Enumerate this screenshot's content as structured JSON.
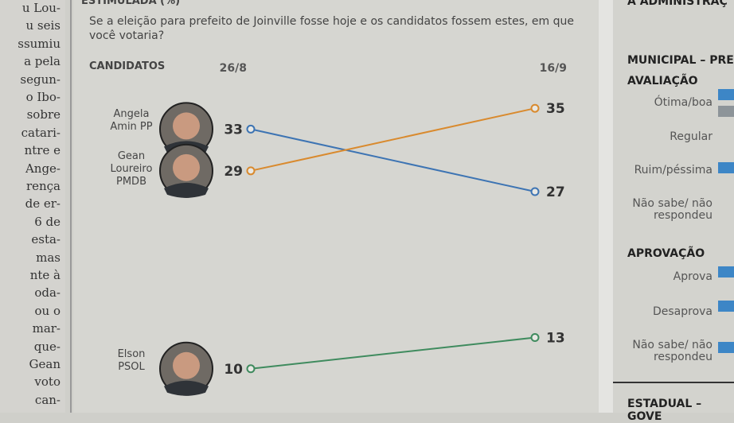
{
  "chart_data": {
    "type": "slope",
    "title": "ESTIMULADA (%)",
    "subtitle": "Se a eleição para prefeito de Joinville fosse hoje e os candidatos fossem estes, em que você votaria?",
    "label_header": "CANDIDATOS",
    "categories": [
      "26/8",
      "16/9"
    ],
    "series": [
      {
        "name": "Angela Amin PP",
        "color": "#3d74b3",
        "values": [
          33,
          27
        ]
      },
      {
        "name": "Gean Loureiro PMDB",
        "color": "#d98a2e",
        "values": [
          29,
          35
        ]
      },
      {
        "name": "Elson PSOL",
        "color": "#3f8b5e",
        "values": [
          10,
          13
        ]
      }
    ],
    "ylim": [
      8,
      37
    ]
  },
  "left_column": [
    "u Lou-",
    "u seis",
    "ssumiu",
    "a pela",
    "segun-",
    "o Ibo-",
    "sobre",
    "catari-",
    "ntre e",
    "Ange-",
    "rença",
    "de er-",
    "6 de",
    "esta-",
    "mas",
    "nte à",
    "oda-",
    "ou o",
    "mar-",
    "que-",
    "Gean",
    "voto",
    "can-"
  ],
  "right_panel": {
    "header": "A ADMINISTRAÇ",
    "section": "MUNICIPAL – PRE",
    "evaluation": {
      "title": "AVALIAÇÃO",
      "items": [
        "Ótima/boa",
        "Regular",
        "Ruim/péssima",
        "Não sabe/ não respondeu"
      ]
    },
    "approval": {
      "title": "APROVAÇÃO",
      "items": [
        "Aprova",
        "Desaprova",
        "Não sabe/ não respondeu"
      ]
    },
    "footer": "ESTADUAL – GOVE"
  }
}
